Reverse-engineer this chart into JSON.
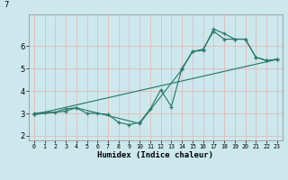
{
  "xlabel": "Humidex (Indice chaleur)",
  "bg_color": "#cce8ec",
  "grid_color": "#e8b0b0",
  "line_color": "#2a7a6a",
  "xlim": [
    -0.5,
    23.5
  ],
  "ylim": [
    1.8,
    7.4
  ],
  "yticks": [
    2,
    3,
    4,
    5,
    6
  ],
  "xticks": [
    0,
    1,
    2,
    3,
    4,
    5,
    6,
    7,
    8,
    9,
    10,
    11,
    12,
    13,
    14,
    15,
    16,
    17,
    18,
    19,
    20,
    21,
    22,
    23
  ],
  "series1_x": [
    0,
    1,
    2,
    3,
    4,
    5,
    6,
    7,
    8,
    9,
    10,
    11,
    12,
    13,
    14,
    15,
    16,
    17,
    18,
    19,
    20,
    21,
    22,
    23
  ],
  "series1_y": [
    3.0,
    3.05,
    3.05,
    3.2,
    3.25,
    3.0,
    3.0,
    2.95,
    2.6,
    2.5,
    2.6,
    3.2,
    4.05,
    3.3,
    5.0,
    5.75,
    5.8,
    6.75,
    6.55,
    6.3,
    6.3,
    5.5,
    5.35,
    5.4
  ],
  "series2_x": [
    0,
    3,
    4,
    10,
    14,
    15,
    16,
    17,
    18,
    19,
    20,
    21,
    22,
    23
  ],
  "series2_y": [
    2.95,
    3.1,
    3.25,
    2.55,
    4.95,
    5.75,
    5.85,
    6.65,
    6.3,
    6.3,
    6.3,
    5.5,
    5.35,
    5.4
  ],
  "series3_x": [
    0,
    23
  ],
  "series3_y": [
    2.95,
    5.4
  ]
}
